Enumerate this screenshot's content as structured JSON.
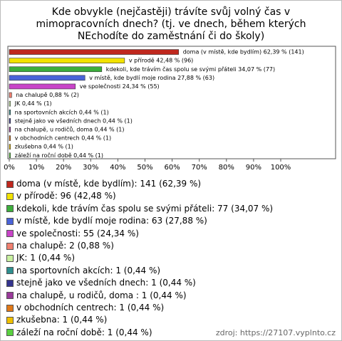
{
  "chart_data": {
    "type": "bar",
    "orientation": "horizontal",
    "title": "Kde obvykle (nejčastěji) trávíte svůj volný čas v mimopracovních dnech? (tj. ve dnech, během kterých NEchodíte do zaměstnání či do školy)",
    "categories": [
      "doma (v místě, kde bydlím)",
      "v přírodě",
      "kdekoli, kde trávím čas spolu se svými přáteli",
      "v místě, kde bydlí moje rodina",
      "ve společnosti",
      "na chalupě",
      "JK",
      "na sportovních akcích",
      "stejně jako ve všedních dnech",
      "na chalupě, u rodičů, doma ",
      "v obchodních centrech",
      "zkušebna",
      "záleží na roční době"
    ],
    "values": [
      62.39,
      42.48,
      34.07,
      27.88,
      24.34,
      0.88,
      0.44,
      0.44,
      0.44,
      0.44,
      0.44,
      0.44,
      0.44
    ],
    "value_labels": [
      "doma (v místě, kde bydlím) 62,39 % (141)",
      "v přírodě 42,48 % (96)",
      "kdekoli, kde trávím čas spolu se svými přáteli 34,07 % (77)",
      "v místě, kde bydlí moje rodina 27,88 % (63)",
      "ve společnosti 24,34 % (55)",
      "na chalupě 0,88 % (2)",
      "JK 0,44 % (1)",
      "na sportovních akcích 0,44 % (1)",
      "stejně jako ve všedních dnech 0,44 % (1)",
      "na chalupě, u rodičů, doma  0,44 % (1)",
      "v obchodních centrech 0,44 % (1)",
      "zkušebna 0,44 % (1)",
      "záleží na roční době 0,44 % (1)"
    ],
    "legend_labels": [
      "doma (v místě, kde bydlím): 141 (62,39 %)",
      "v přírodě: 96 (42,48 %)",
      "kdekoli, kde trávím čas spolu se svými přáteli: 77 (34,07 %)",
      "v místě, kde bydlí moje rodina: 63 (27,88 %)",
      "ve společnosti: 55 (24,34 %)",
      "na chalupě: 2 (0,88 %)",
      "JK: 1 (0,44 %)",
      "na sportovních akcích: 1 (0,44 %)",
      "stejně jako ve všedních dnech: 1 (0,44 %)",
      "na chalupě, u rodičů, doma : 1 (0,44 %)",
      "v obchodních centrech: 1 (0,44 %)",
      "zkušebna: 1 (0,44 %)",
      "záleží na roční době: 1 (0,44 %)"
    ],
    "colors": [
      "#c0281e",
      "#f2e200",
      "#3cae3c",
      "#4a63d8",
      "#c844c8",
      "#f08070",
      "#c8f0a0",
      "#2e8f8f",
      "#34348f",
      "#9a3a9a",
      "#e07818",
      "#f0c000",
      "#5ad040"
    ],
    "xlim": [
      0,
      100
    ],
    "xticks": [
      {
        "value": 0,
        "label": "0%"
      },
      {
        "value": 10,
        "label": "10%"
      },
      {
        "value": 20,
        "label": "20%"
      },
      {
        "value": 30,
        "label": "30%"
      },
      {
        "value": 40,
        "label": "40%"
      },
      {
        "value": 50,
        "label": "50%"
      },
      {
        "value": 60,
        "label": "60%"
      },
      {
        "value": 70,
        "label": "70%"
      },
      {
        "value": 80,
        "label": "80%"
      },
      {
        "value": 90,
        "label": "90%"
      },
      {
        "value": 100,
        "label": "100%"
      }
    ],
    "grid": false,
    "source": "zdroj: https://27107.vyplnto.cz"
  }
}
